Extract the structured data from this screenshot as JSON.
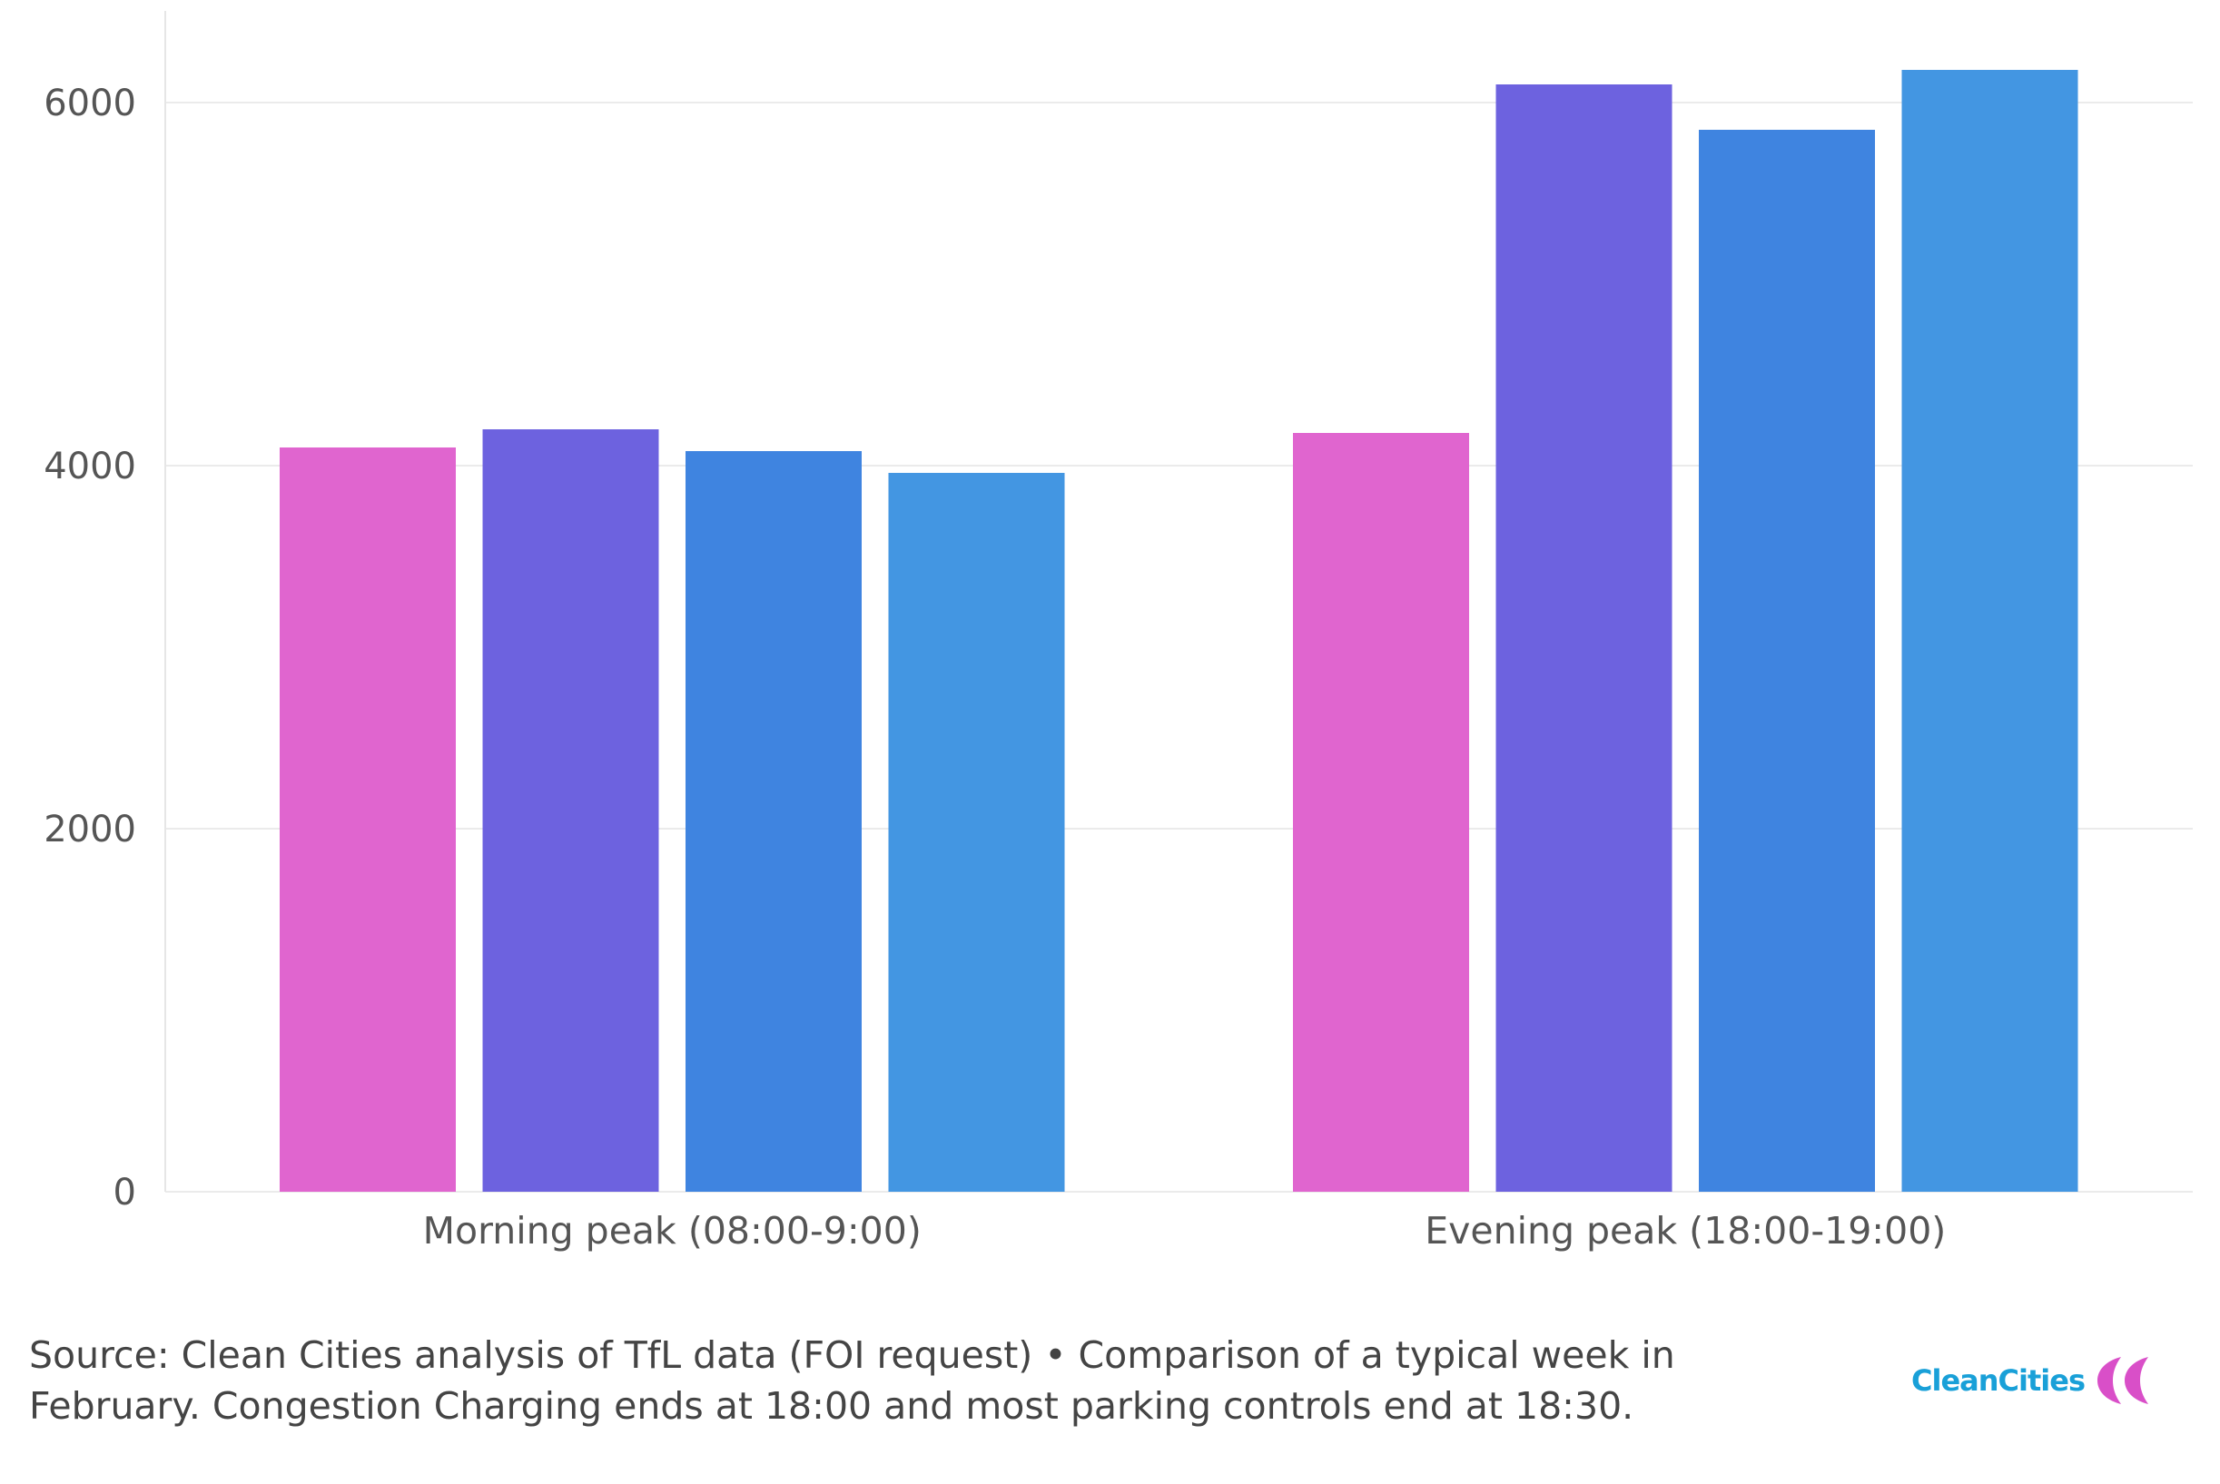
{
  "chart_data": {
    "type": "bar",
    "categories": [
      "Morning peak (08:00-9:00)",
      "Evening peak (18:00-19:00)"
    ],
    "series": [
      {
        "color": "#e065cf",
        "values": [
          4100,
          4180
        ]
      },
      {
        "color": "#6d62df",
        "values": [
          4200,
          6100
        ]
      },
      {
        "color": "#3f84e0",
        "values": [
          4080,
          5850
        ]
      },
      {
        "color": "#4396e2",
        "values": [
          3960,
          6180
        ]
      }
    ],
    "ylim": [
      0,
      6500
    ],
    "yticks": [
      0,
      2000,
      4000,
      6000
    ],
    "grid": true,
    "legend": "none"
  },
  "footer": {
    "source_text": "Source: Clean Cities analysis of TfL data (FOI request) • Comparison of a typical week in February. Congestion Charging ends at 18:00 and most parking controls end at 18:30.",
    "logo_text": "CleanCities",
    "logo_mark_color": "#d94fc8",
    "logo_text_color": "#19a0d8"
  }
}
